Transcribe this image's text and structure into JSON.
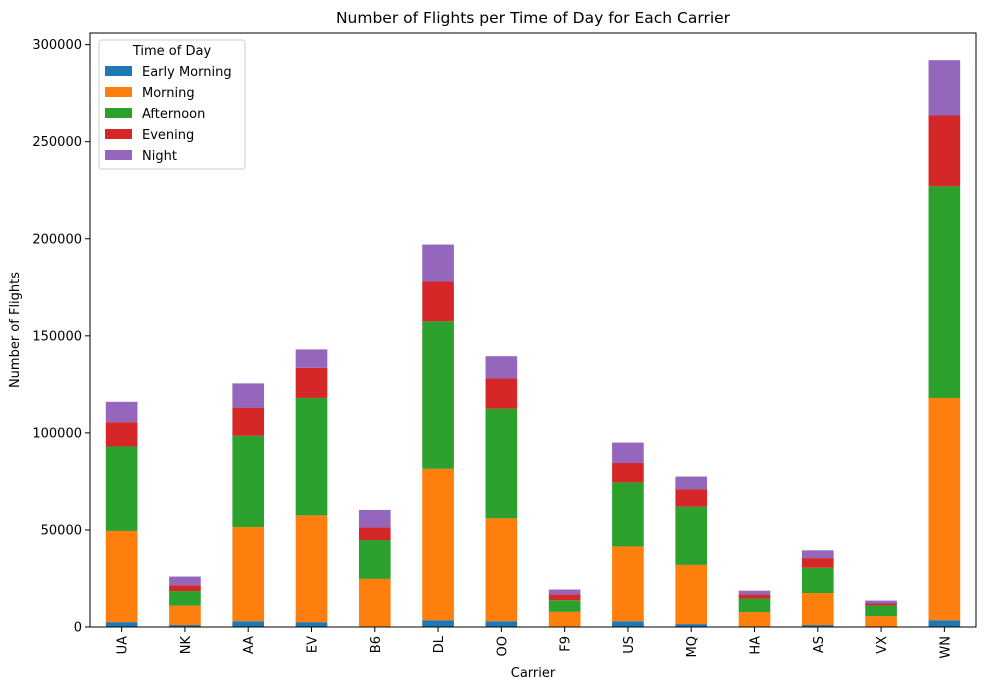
{
  "chart_data": {
    "type": "bar",
    "stacked": true,
    "title": "Number of Flights per Time of Day for Each Carrier",
    "xlabel": "Carrier",
    "ylabel": "Number of Flights",
    "ylim": [
      0,
      306000
    ],
    "yticks": [
      0,
      50000,
      100000,
      150000,
      200000,
      250000,
      300000
    ],
    "ytick_labels": [
      "0",
      "50000",
      "100000",
      "150000",
      "200000",
      "250000",
      "300000"
    ],
    "categories": [
      "UA",
      "NK",
      "AA",
      "EV",
      "B6",
      "DL",
      "OO",
      "F9",
      "US",
      "MQ",
      "HA",
      "AS",
      "VX",
      "WN"
    ],
    "legend": {
      "title": "Time of Day",
      "placement": "top-left"
    },
    "grid": false,
    "series": [
      {
        "name": "Early Morning",
        "color": "#1f77b4",
        "values": [
          2500,
          1000,
          3000,
          2500,
          300,
          3500,
          3000,
          300,
          3000,
          1500,
          200,
          1000,
          100,
          3500
        ]
      },
      {
        "name": "Morning",
        "color": "#ff7f0e",
        "values": [
          47000,
          10000,
          48500,
          55000,
          24500,
          78000,
          53000,
          7500,
          38500,
          30500,
          7500,
          16500,
          5500,
          114500
        ]
      },
      {
        "name": "Afternoon",
        "color": "#2ca02c",
        "values": [
          43500,
          7500,
          47000,
          60500,
          20000,
          76000,
          56500,
          6000,
          33000,
          30000,
          7000,
          13000,
          5500,
          109000
        ]
      },
      {
        "name": "Evening",
        "color": "#d62728",
        "values": [
          12500,
          3000,
          14500,
          15500,
          6500,
          20500,
          15500,
          3000,
          10000,
          9000,
          2000,
          5000,
          1000,
          36500
        ]
      },
      {
        "name": "Night",
        "color": "#9467bd",
        "values": [
          10500,
          4500,
          12500,
          9500,
          9000,
          19000,
          11500,
          2500,
          10500,
          6500,
          2000,
          4000,
          1500,
          28500
        ]
      }
    ]
  }
}
